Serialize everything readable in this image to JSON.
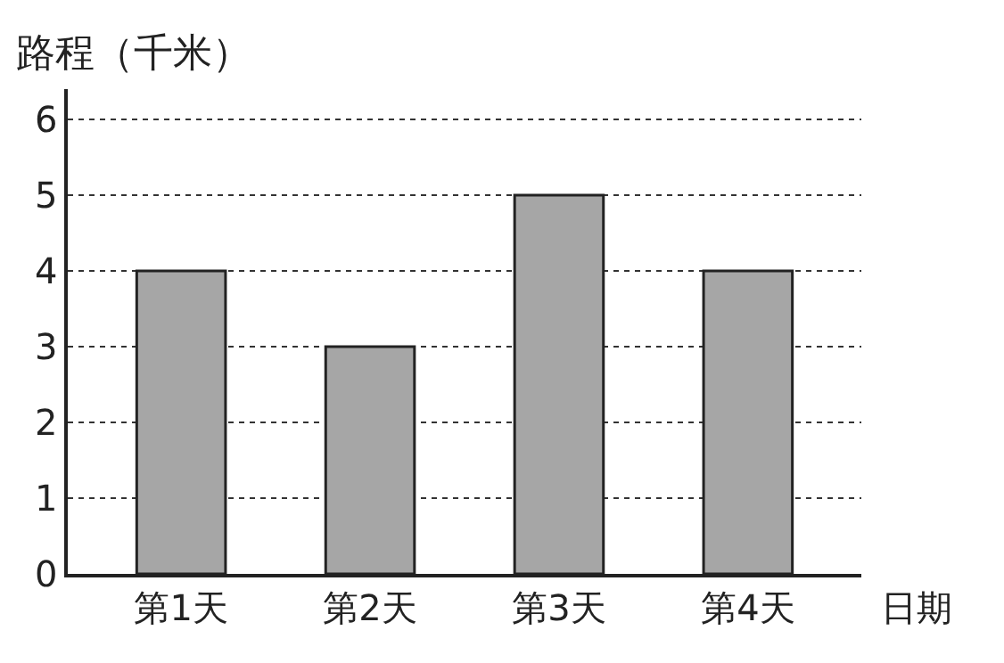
{
  "chart_data": {
    "type": "bar",
    "ylabel": "路程（千米）",
    "xlabel": "日期",
    "categories": [
      "第1天",
      "第2天",
      "第3天",
      "第4天"
    ],
    "values": [
      4,
      3,
      5,
      4
    ],
    "color": "#a6a6a6",
    "ylim": [
      0,
      6.4
    ],
    "yticks": [
      0,
      1,
      2,
      3,
      4,
      5,
      6
    ],
    "grid": "y"
  }
}
